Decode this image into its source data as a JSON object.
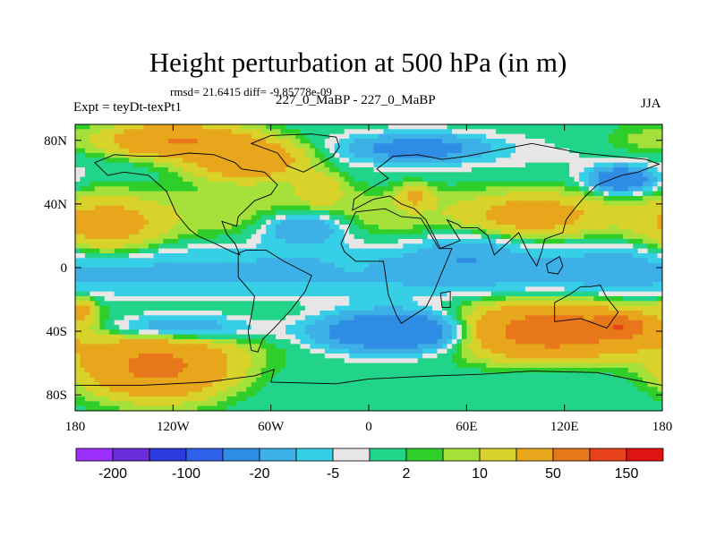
{
  "header": {
    "title": "Height perturbation at 500 hPa (in m)",
    "stats": "rmsd= 21.6415 diff= -9.85778e-09",
    "left_label": "Expt = teyDt-texPt1",
    "center_label": "227_0_MaBP - 227_0_MaBP",
    "right_label": "JJA"
  },
  "chart_data": {
    "type": "heatmap",
    "title": "Height perturbation at 500 hPa (in m)",
    "variable": "500 hPa height perturbation",
    "units": "m",
    "season": "JJA",
    "xlim": [
      -180,
      180
    ],
    "ylim": [
      -90,
      90
    ],
    "x_ticks": [
      {
        "value": -180,
        "label": "180"
      },
      {
        "value": -120,
        "label": "120W"
      },
      {
        "value": -60,
        "label": "60W"
      },
      {
        "value": 0,
        "label": "0"
      },
      {
        "value": 60,
        "label": "60E"
      },
      {
        "value": 120,
        "label": "120E"
      },
      {
        "value": 180,
        "label": "180"
      }
    ],
    "y_ticks": [
      {
        "value": 80,
        "label": "80N"
      },
      {
        "value": 40,
        "label": "40N"
      },
      {
        "value": 0,
        "label": "0"
      },
      {
        "value": -40,
        "label": "40S"
      },
      {
        "value": -80,
        "label": "80S"
      }
    ],
    "contour_levels": [
      -300,
      -200,
      -150,
      -100,
      -50,
      -20,
      -10,
      -5,
      -2,
      2,
      5,
      10,
      20,
      50,
      100,
      150,
      200
    ],
    "colorbar_labels": [
      {
        "level": -200,
        "label": "-200"
      },
      {
        "level": -100,
        "label": "-100"
      },
      {
        "level": -20,
        "label": "-20"
      },
      {
        "level": -5,
        "label": "-5"
      },
      {
        "level": 2,
        "label": "2"
      },
      {
        "level": 10,
        "label": "10"
      },
      {
        "level": 50,
        "label": "50"
      },
      {
        "level": 150,
        "label": "150"
      }
    ],
    "colors": [
      "#9b30ff",
      "#6a2bd9",
      "#2d3bdc",
      "#2f61e8",
      "#2f8de6",
      "#3eb0e8",
      "#36cfe6",
      "#e6e6e6",
      "#21d48a",
      "#2fce2a",
      "#a6e03a",
      "#d8d22a",
      "#e8a61c",
      "#e8761a",
      "#e8421a",
      "#e01212"
    ],
    "field_features": [
      {
        "lon": -160,
        "lat": 25,
        "radius": [
          30,
          16
        ],
        "value": 25
      },
      {
        "lon": -120,
        "lat": 80,
        "radius": [
          40,
          10
        ],
        "value": 50
      },
      {
        "lon": -75,
        "lat": 68,
        "radius": [
          34,
          12
        ],
        "value": 45
      },
      {
        "lon": -30,
        "lat": 50,
        "radius": [
          15,
          10
        ],
        "value": 15
      },
      {
        "lon": 28,
        "lat": 45,
        "radius": [
          10,
          7
        ],
        "value": 20
      },
      {
        "lon": 100,
        "lat": 33,
        "radius": [
          36,
          12
        ],
        "value": 25
      },
      {
        "lon": 165,
        "lat": 80,
        "radius": [
          22,
          10
        ],
        "value": 6
      },
      {
        "lon": -130,
        "lat": -63,
        "radius": [
          42,
          18
        ],
        "value": 60
      },
      {
        "lon": 110,
        "lat": -40,
        "radius": [
          55,
          15
        ],
        "value": 70
      },
      {
        "lon": 155,
        "lat": -37,
        "radius": [
          14,
          6
        ],
        "value": 60
      },
      {
        "lon": 150,
        "lat": 0,
        "radius": [
          20,
          12
        ],
        "value": -8
      },
      {
        "lon": 30,
        "lat": 75,
        "radius": [
          40,
          8
        ],
        "value": -30
      },
      {
        "lon": 155,
        "lat": 55,
        "radius": [
          18,
          8
        ],
        "value": -40
      },
      {
        "lon": 20,
        "lat": -40,
        "radius": [
          50,
          12
        ],
        "value": -60
      },
      {
        "lon": -120,
        "lat": -38,
        "radius": [
          50,
          9
        ],
        "value": -28
      },
      {
        "lon": -40,
        "lat": 25,
        "radius": [
          25,
          10
        ],
        "value": -25
      },
      {
        "lon": 60,
        "lat": 10,
        "radius": [
          30,
          15
        ],
        "value": -12
      },
      {
        "lon": -10,
        "lat": 0,
        "radius": [
          14,
          7
        ],
        "value": 2.5
      },
      {
        "lon": -175,
        "lat": -26,
        "radius": [
          7,
          8
        ],
        "value": 20
      }
    ],
    "continents": [
      {
        "name": "North America",
        "lonlat": [
          [
            -168,
            66
          ],
          [
            -160,
            58
          ],
          [
            -150,
            60
          ],
          [
            -135,
            58
          ],
          [
            -124,
            48
          ],
          [
            -118,
            34
          ],
          [
            -110,
            24
          ],
          [
            -105,
            20
          ],
          [
            -96,
            16
          ],
          [
            -84,
            10
          ],
          [
            -79,
            8
          ],
          [
            -82,
            15
          ],
          [
            -87,
            21
          ],
          [
            -90,
            29
          ],
          [
            -81,
            26
          ],
          [
            -80,
            32
          ],
          [
            -70,
            42
          ],
          [
            -60,
            46
          ],
          [
            -56,
            52
          ],
          [
            -64,
            60
          ],
          [
            -78,
            62
          ],
          [
            -82,
            66
          ],
          [
            -95,
            71
          ],
          [
            -110,
            72
          ],
          [
            -125,
            70
          ],
          [
            -140,
            70
          ],
          [
            -156,
            71
          ]
        ]
      },
      {
        "name": "Greenland",
        "lonlat": [
          [
            -72,
            78
          ],
          [
            -60,
            83
          ],
          [
            -35,
            84
          ],
          [
            -20,
            82
          ],
          [
            -18,
            76
          ],
          [
            -22,
            70
          ],
          [
            -40,
            60
          ],
          [
            -50,
            64
          ],
          [
            -56,
            72
          ]
        ]
      },
      {
        "name": "South America",
        "lonlat": [
          [
            -80,
            9
          ],
          [
            -75,
            11
          ],
          [
            -63,
            11
          ],
          [
            -52,
            4
          ],
          [
            -35,
            -5
          ],
          [
            -39,
            -15
          ],
          [
            -48,
            -27
          ],
          [
            -58,
            -38
          ],
          [
            -65,
            -45
          ],
          [
            -68,
            -53
          ],
          [
            -72,
            -52
          ],
          [
            -74,
            -40
          ],
          [
            -71,
            -25
          ],
          [
            -70,
            -18
          ],
          [
            -80,
            -6
          ]
        ]
      },
      {
        "name": "Africa",
        "lonlat": [
          [
            -17,
            15
          ],
          [
            -8,
            35
          ],
          [
            10,
            37
          ],
          [
            20,
            32
          ],
          [
            32,
            31
          ],
          [
            35,
            26
          ],
          [
            43,
            12
          ],
          [
            51,
            12
          ],
          [
            40,
            -15
          ],
          [
            35,
            -25
          ],
          [
            20,
            -35
          ],
          [
            17,
            -30
          ],
          [
            12,
            -17
          ],
          [
            9,
            4
          ],
          [
            -8,
            4
          ],
          [
            -15,
            10
          ]
        ]
      },
      {
        "name": "Eurasia",
        "lonlat": [
          [
            -10,
            36
          ],
          [
            -9,
            43
          ],
          [
            -2,
            48
          ],
          [
            8,
            54
          ],
          [
            12,
            56
          ],
          [
            5,
            62
          ],
          [
            15,
            70
          ],
          [
            30,
            71
          ],
          [
            45,
            68
          ],
          [
            60,
            70
          ],
          [
            75,
            73
          ],
          [
            100,
            78
          ],
          [
            130,
            72
          ],
          [
            150,
            70
          ],
          [
            170,
            68
          ],
          [
            178,
            65
          ],
          [
            165,
            60
          ],
          [
            155,
            58
          ],
          [
            140,
            52
          ],
          [
            132,
            44
          ],
          [
            127,
            38
          ],
          [
            121,
            30
          ],
          [
            119,
            22
          ],
          [
            108,
            18
          ],
          [
            106,
            10
          ],
          [
            103,
            1
          ],
          [
            98,
            9
          ],
          [
            92,
            22
          ],
          [
            77,
            8
          ],
          [
            73,
            20
          ],
          [
            67,
            25
          ],
          [
            57,
            25
          ],
          [
            55,
            27
          ],
          [
            48,
            30
          ],
          [
            50,
            27
          ],
          [
            56,
            17
          ],
          [
            44,
            12
          ],
          [
            35,
            30
          ],
          [
            28,
            37
          ],
          [
            20,
            40
          ],
          [
            13,
            45
          ],
          [
            3,
            43
          ]
        ]
      },
      {
        "name": "Australia",
        "lonlat": [
          [
            114,
            -22
          ],
          [
            114,
            -34
          ],
          [
            130,
            -32
          ],
          [
            138,
            -35
          ],
          [
            146,
            -38
          ],
          [
            153,
            -28
          ],
          [
            146,
            -19
          ],
          [
            142,
            -11
          ],
          [
            136,
            -12
          ],
          [
            130,
            -12
          ],
          [
            123,
            -17
          ]
        ]
      },
      {
        "name": "Antarctica",
        "lonlat": [
          [
            -180,
            -74
          ],
          [
            -140,
            -74
          ],
          [
            -100,
            -72
          ],
          [
            -70,
            -68
          ],
          [
            -58,
            -64
          ],
          [
            -60,
            -72
          ],
          [
            -20,
            -73
          ],
          [
            0,
            -70
          ],
          [
            40,
            -68
          ],
          [
            70,
            -67
          ],
          [
            100,
            -65
          ],
          [
            140,
            -66
          ],
          [
            170,
            -72
          ],
          [
            180,
            -74
          ],
          [
            180,
            -90
          ],
          [
            -180,
            -90
          ]
        ]
      },
      {
        "name": "Madagascar",
        "lonlat": [
          [
            44,
            -16
          ],
          [
            50,
            -15
          ],
          [
            50,
            -25
          ],
          [
            45,
            -25
          ]
        ]
      },
      {
        "name": "Borneo",
        "lonlat": [
          [
            109,
            2
          ],
          [
            117,
            7
          ],
          [
            119,
            1
          ],
          [
            116,
            -4
          ],
          [
            110,
            -3
          ]
        ]
      }
    ]
  }
}
